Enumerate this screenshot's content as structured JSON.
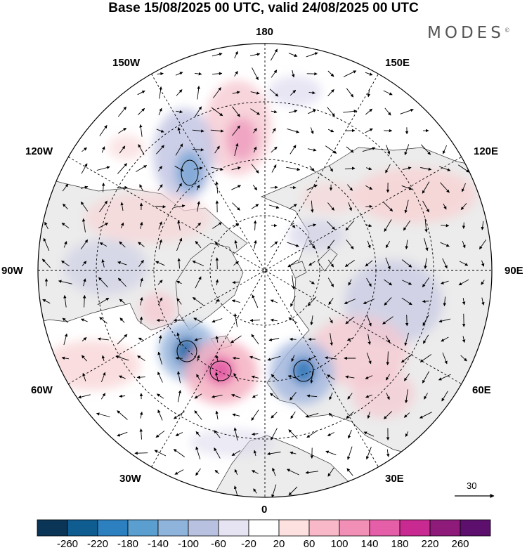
{
  "title": "Base 15/08/2025 00 UTC, valid 24/08/2025 00 UTC",
  "brand": "MODES",
  "brand_mark": "©",
  "map": {
    "projection": "north-polar-stereographic",
    "longitude_labels": {
      "top": "180",
      "bottom": "0",
      "left": "90W",
      "right": "90E",
      "upper_left_1": "150W",
      "upper_left_2": "120W",
      "upper_right_1": "150E",
      "upper_right_2": "120E",
      "lower_left_1": "60W",
      "lower_left_2": "30W",
      "lower_right_1": "60E",
      "lower_right_2": "30E"
    },
    "reference_vector_label": "30"
  },
  "colorbar": {
    "labels": [
      "-260",
      "-220",
      "-180",
      "-140",
      "-100",
      "-60",
      "-20",
      "20",
      "60",
      "100",
      "140",
      "180",
      "220",
      "260"
    ],
    "colors": [
      "#0b3556",
      "#0f5c90",
      "#2d80c0",
      "#5a9fd0",
      "#8fb4dc",
      "#b8c2e0",
      "#e6e4f2",
      "#ffffff",
      "#fde0e0",
      "#f9b8c8",
      "#f28fb6",
      "#e45fa7",
      "#c92a91",
      "#8e1a7a",
      "#5c0f6c"
    ]
  },
  "colors": {
    "land": "#ececec",
    "ocean": "#ffffff",
    "grid": "#000000"
  }
}
